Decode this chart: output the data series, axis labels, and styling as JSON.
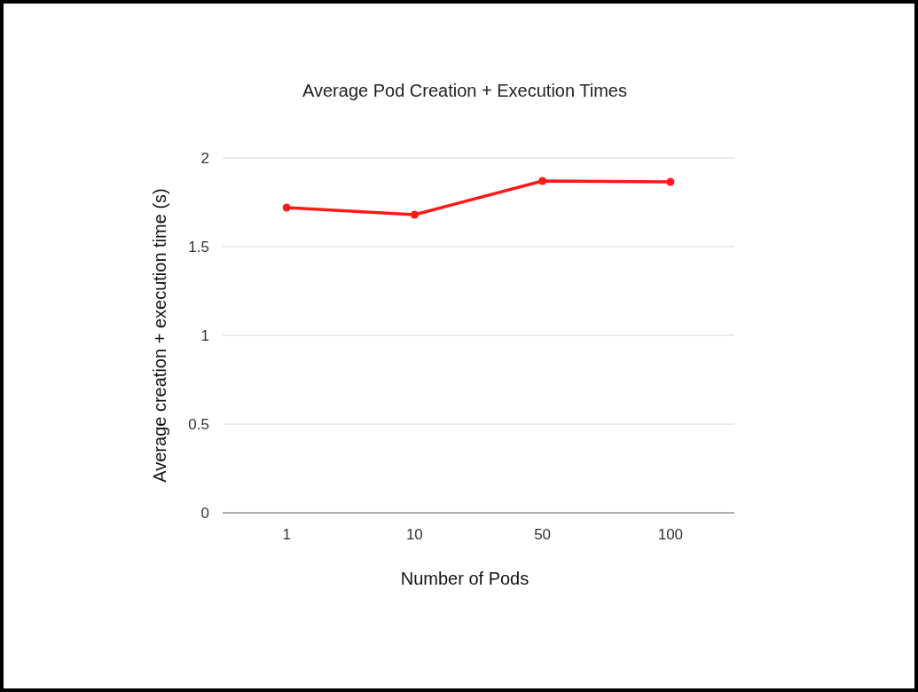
{
  "chart_data": {
    "type": "line",
    "title": "Average Pod Creation + Execution Times",
    "xlabel": "Number of Pods",
    "ylabel": "Average creation + execution time (s)",
    "categories": [
      "1",
      "10",
      "50",
      "100"
    ],
    "series": [
      {
        "color": "#ff1a1a",
        "values": [
          1.72,
          1.68,
          1.87,
          1.865
        ]
      }
    ],
    "ylim": [
      0,
      2
    ],
    "yticks": [
      0,
      0.5,
      1,
      1.5,
      2
    ],
    "grid": "y",
    "marker": "circle",
    "line_style": "solid"
  }
}
